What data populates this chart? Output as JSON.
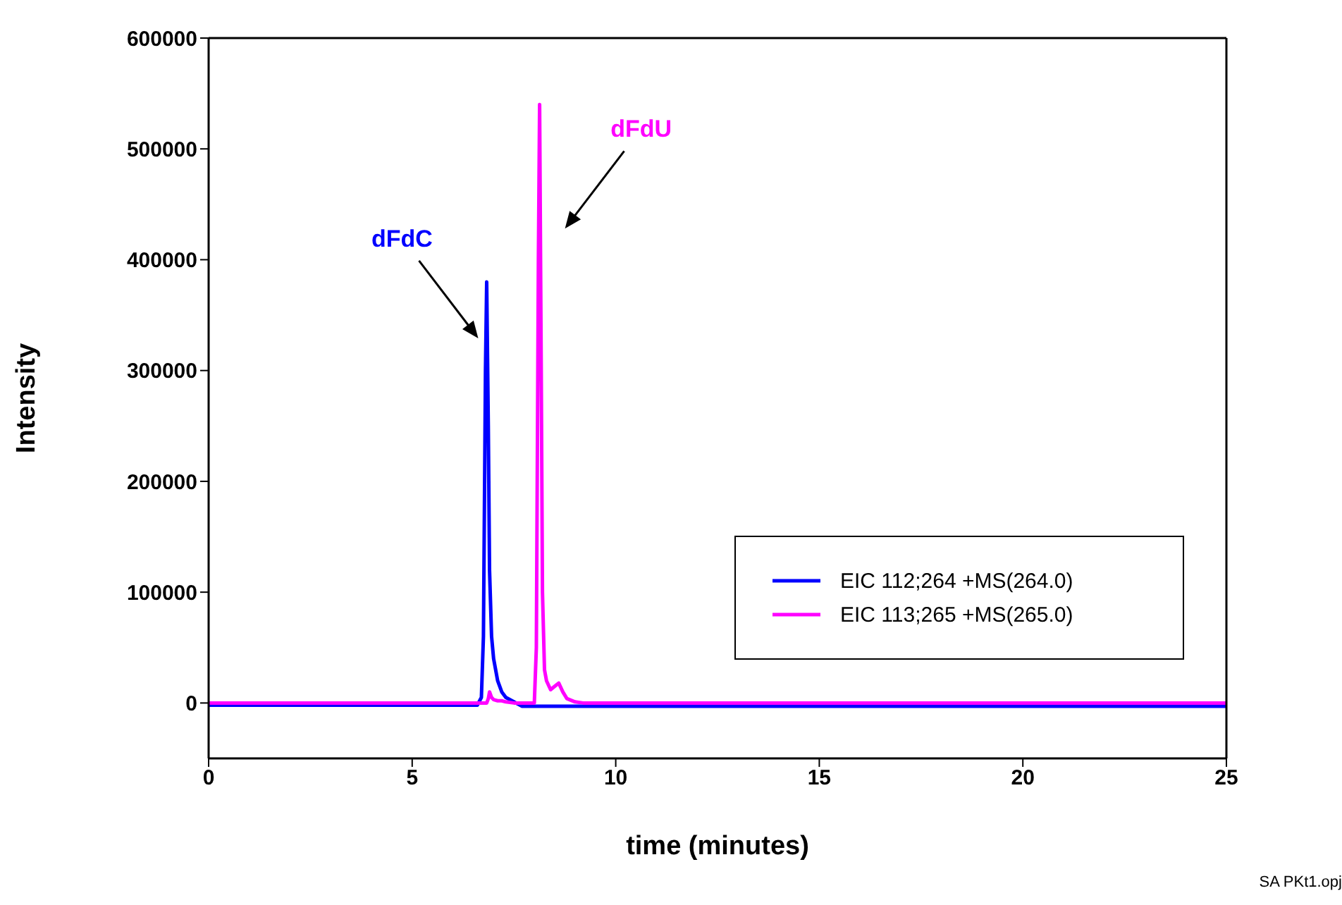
{
  "chart_data": {
    "type": "line",
    "xlabel": "time (minutes)",
    "ylabel": "Intensity",
    "x": [
      0,
      0.5,
      1,
      1.5,
      2,
      2.5,
      3,
      3.5,
      4,
      4.5,
      5,
      5.5,
      6,
      6.4,
      6.6,
      6.7,
      6.75,
      6.8,
      6.83,
      6.87,
      6.9,
      6.95,
      7.0,
      7.1,
      7.2,
      7.3,
      7.5,
      7.7,
      8.0,
      8.05,
      8.1,
      8.13,
      8.17,
      8.2,
      8.25,
      8.3,
      8.4,
      8.5,
      8.6,
      8.7,
      8.8,
      9.0,
      9.2,
      9.5,
      10,
      11,
      12,
      13,
      14,
      15,
      16,
      17,
      18,
      19,
      20,
      21,
      22,
      23,
      24,
      25
    ],
    "series": [
      {
        "name": "EIC 112;264 +MS(264.0)",
        "color": "#0000ff",
        "values": [
          -2000,
          -2000,
          -2000,
          -2000,
          -2000,
          -2000,
          -2000,
          -2000,
          -2000,
          -2000,
          -2000,
          -2000,
          -2000,
          -2000,
          -2000,
          5000,
          60000,
          300000,
          380000,
          250000,
          120000,
          60000,
          40000,
          20000,
          10000,
          5000,
          1000,
          -3000,
          -3000,
          -3000,
          -3000,
          -3000,
          -3000,
          -3000,
          -3000,
          -3000,
          -3000,
          -3000,
          -3000,
          -3000,
          -3000,
          -3000,
          -3000,
          -3000,
          -3000,
          -3000,
          -3000,
          -3000,
          -3000,
          -3000,
          -3000,
          -3000,
          -3000,
          -3000,
          -3000,
          -3000,
          -3000,
          -3000,
          -3000,
          -3000
        ]
      },
      {
        "name": "EIC 113;265 +MS(265.0)",
        "color": "#ff00ff",
        "values": [
          0,
          0,
          0,
          0,
          0,
          0,
          0,
          0,
          0,
          0,
          0,
          0,
          0,
          0,
          0,
          0,
          0,
          0,
          0,
          4000,
          10000,
          5000,
          3000,
          2000,
          2000,
          1000,
          0,
          0,
          0,
          50000,
          400000,
          540000,
          300000,
          100000,
          30000,
          20000,
          12000,
          15000,
          18000,
          10000,
          4000,
          1000,
          0,
          0,
          0,
          0,
          0,
          0,
          0,
          0,
          0,
          0,
          0,
          0,
          0,
          0,
          0,
          0,
          0,
          0
        ]
      }
    ],
    "xlim": [
      0,
      25
    ],
    "xticks": [
      0,
      5,
      10,
      15,
      20,
      25
    ],
    "ylim": [
      -50000,
      600000
    ],
    "yticks": [
      0,
      100000,
      200000,
      300000,
      400000,
      500000,
      600000
    ],
    "grid": false,
    "legend": "bottom right",
    "marker": "none",
    "line_style": "solid",
    "annotations": [
      {
        "text": "dFdC",
        "x": 6.83,
        "y": 380000
      },
      {
        "text": "dFdU",
        "x": 8.13,
        "y": 540000
      },
      "SA PKt1.opj"
    ]
  }
}
